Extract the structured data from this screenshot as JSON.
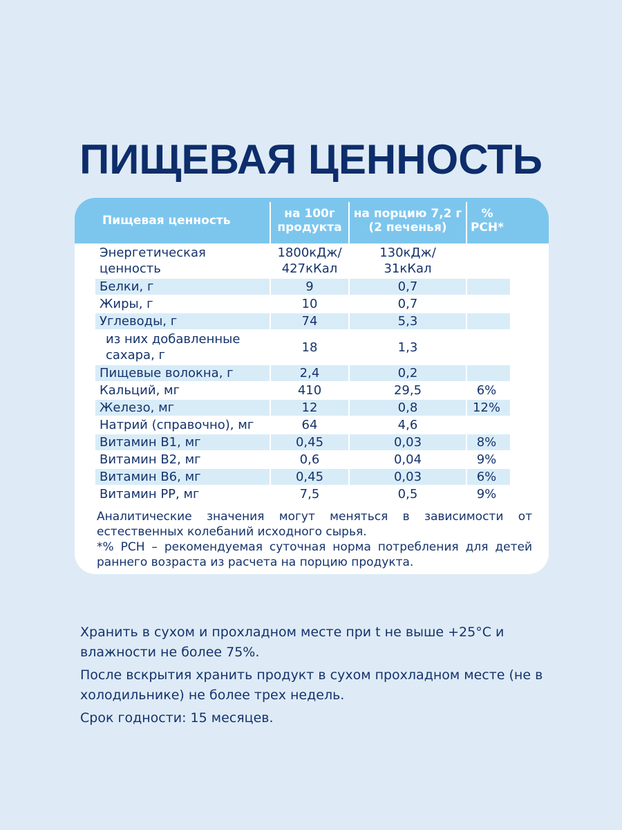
{
  "title": "ПИЩЕВАЯ ЦЕННОСТЬ",
  "table": {
    "headers": [
      "Пищевая ценность",
      "на 100г\nпродукта",
      "на порцию 7,2 г\n(2 печенья)",
      "%\nРСН*"
    ],
    "rows": [
      {
        "name": "Энергетическая\nценность",
        "v100": "1800кДж/\n427кКал",
        "portion": "130кДж/\n31кКал",
        "rsn": ""
      },
      {
        "name": "Белки, г",
        "v100": "9",
        "portion": "0,7",
        "rsn": ""
      },
      {
        "name": "Жиры, г",
        "v100": "10",
        "portion": "0,7",
        "rsn": ""
      },
      {
        "name": "Углеводы, г",
        "v100": "74",
        "portion": "5,3",
        "rsn": ""
      },
      {
        "name": "из них добавленные\nсахара, г",
        "v100": "18",
        "portion": "1,3",
        "rsn": ""
      },
      {
        "name": "Пищевые волокна, г",
        "v100": "2,4",
        "portion": "0,2",
        "rsn": ""
      },
      {
        "name": "Кальций, мг",
        "v100": "410",
        "portion": "29,5",
        "rsn": "6%"
      },
      {
        "name": "Железо, мг",
        "v100": "12",
        "portion": "0,8",
        "rsn": "12%"
      },
      {
        "name": "Натрий (справочно), мг",
        "v100": "64",
        "portion": "4,6",
        "rsn": ""
      },
      {
        "name": "Витамин В1, мг",
        "v100": "0,45",
        "portion": "0,03",
        "rsn": "8%"
      },
      {
        "name": "Витамин В2, мг",
        "v100": "0,6",
        "portion": "0,04",
        "rsn": "9%"
      },
      {
        "name": "Витамин В6, мг",
        "v100": "0,45",
        "portion": "0,03",
        "rsn": "6%"
      },
      {
        "name": "Витамин РР, мг",
        "v100": "7,5",
        "portion": "0,5",
        "rsn": "9%"
      }
    ]
  },
  "notes": {
    "analytic": "Аналитические значения могут меняться в зависимости от естественных колебаний исходного сырья.",
    "rsn": "*% РСН – рекомендуемая суточная норма потребления для детей раннего возраста из расчета на порцию продукта."
  },
  "storage": {
    "line1": "Хранить в сухом и прохладном месте при t не выше +25°С и влажности не более 75%.",
    "line2": "После вскрытия хранить продукт в сухом прохладном месте (не в холодильнике) не более трех недель.",
    "line3": "Срок годности: 15 месяцев."
  },
  "colors": {
    "background": "#deebf6",
    "header": "#7cc6ee",
    "row_shade": "#d8ecf8",
    "text": "#15336b"
  }
}
